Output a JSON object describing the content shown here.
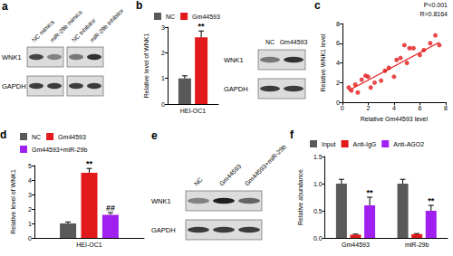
{
  "chart_data": [
    {
      "type": "bar",
      "title": "b",
      "categories": [
        "HEI-OC1"
      ],
      "series": [
        {
          "name": "NC",
          "color": "#595959",
          "values": [
            1.0
          ],
          "errors": [
            0.1
          ]
        },
        {
          "name": "Gm44593",
          "color": "#e31a1c",
          "values": [
            2.6
          ],
          "errors": [
            0.25
          ]
        }
      ],
      "ylabel": "Relative level of WNK1",
      "ylim": [
        0,
        3
      ],
      "yticks": [
        0,
        1,
        2,
        3
      ],
      "grid": false,
      "legend": "top",
      "annotations": [
        {
          "series": "Gm44593",
          "category": "HEI-OC1",
          "text": "**"
        }
      ]
    },
    {
      "type": "scatter",
      "title": "c",
      "xlabel": "Relative Gm44593 level",
      "ylabel": "Relative WNK1 level",
      "x": [
        0.5,
        0.7,
        1.0,
        1.2,
        1.5,
        1.8,
        2.0,
        2.2,
        2.5,
        3.0,
        3.3,
        3.6,
        4.0,
        4.2,
        4.5,
        4.8,
        5.0,
        5.2,
        5.5,
        6.0,
        6.3,
        6.8,
        7.2,
        7.5
      ],
      "values": [
        1.5,
        1.2,
        1.8,
        1.0,
        2.3,
        2.7,
        2.6,
        1.5,
        2.0,
        2.2,
        3.2,
        3.5,
        2.6,
        4.3,
        4.5,
        5.8,
        4.0,
        5.5,
        5.5,
        4.8,
        5.3,
        6.0,
        6.8,
        5.8
      ],
      "color": "#e31a1c",
      "marker": "circle",
      "trend_line": {
        "x": [
          0.5,
          7.5
        ],
        "values": [
          1.2,
          6.1
        ]
      },
      "xlim": [
        0,
        8
      ],
      "xticks": [
        0,
        2,
        4,
        6,
        8
      ],
      "ylim": [
        0,
        8
      ],
      "yticks": [
        0,
        2,
        4,
        6,
        8
      ],
      "grid": false,
      "annotations": [
        "P<0.001",
        "R=0.8164"
      ]
    },
    {
      "type": "bar",
      "title": "d",
      "categories": [
        "HEI-OC1"
      ],
      "series": [
        {
          "name": "NC",
          "color": "#595959",
          "values": [
            1.0
          ],
          "errors": [
            0.1
          ]
        },
        {
          "name": "Gm44593",
          "color": "#e31a1c",
          "values": [
            4.5
          ],
          "errors": [
            0.3
          ]
        },
        {
          "name": "Gm44593+miR-29b",
          "color": "#a020f0",
          "values": [
            1.6
          ],
          "errors": [
            0.15
          ]
        }
      ],
      "ylabel": "Relative level of WNK1",
      "ylim": [
        0,
        5
      ],
      "yticks": [
        0,
        1,
        2,
        3,
        4,
        5
      ],
      "grid": false,
      "legend": "top",
      "annotations": [
        {
          "series": "Gm44593",
          "category": "HEI-OC1",
          "text": "**"
        },
        {
          "series": "Gm44593+miR-29b",
          "category": "HEI-OC1",
          "text": "##"
        }
      ]
    },
    {
      "type": "bar",
      "title": "f",
      "categories": [
        "Gm44593",
        "miR-29b"
      ],
      "series": [
        {
          "name": "Input",
          "color": "#595959",
          "values": [
            1.0,
            1.0
          ],
          "errors": [
            0.08,
            0.08
          ]
        },
        {
          "name": "Anti-IgG",
          "color": "#e31a1c",
          "values": [
            0.06,
            0.07
          ],
          "errors": [
            0.01,
            0.01
          ]
        },
        {
          "name": "Anti-AGO2",
          "color": "#a020f0",
          "values": [
            0.6,
            0.5
          ],
          "errors": [
            0.15,
            0.1
          ]
        }
      ],
      "ylabel": "Relative abundance",
      "ylim": [
        0,
        1.5
      ],
      "yticks": [
        {
          "value": 0,
          "label": "0.0"
        },
        {
          "value": 0.5,
          "label": "0.5"
        },
        {
          "value": 1.0,
          "label": "1.0"
        },
        {
          "value": 1.5,
          "label": "1.5"
        }
      ],
      "grid": false,
      "legend": "top",
      "annotations": [
        {
          "series": "Anti-AGO2",
          "category": "Gm44593",
          "text": "**"
        },
        {
          "series": "Anti-AGO2",
          "category": "miR-29b",
          "text": "**"
        }
      ]
    }
  ],
  "blots": [
    {
      "panel": "a",
      "lanes": [
        "NC mimics",
        "miR-29b mimics",
        "NC inhibitor",
        "miR-29b inhibitor"
      ],
      "rows": [
        "WNK1",
        "GAPDH"
      ],
      "density": [
        [
          0.75,
          0.45,
          0.5,
          0.85
        ],
        [
          0.8,
          0.8,
          0.8,
          0.8
        ]
      ]
    },
    {
      "lanes": [
        "NC",
        "Gm44593"
      ],
      "rows": [
        "WNK1",
        "GAPDH"
      ],
      "density": [
        [
          0.5,
          0.85
        ],
        [
          0.8,
          0.8
        ]
      ]
    },
    {
      "panel": "e",
      "lanes": [
        "NC",
        "Gm44593",
        "Gm44593+miR-29b"
      ],
      "rows": [
        "WNK1",
        "GAPDH"
      ],
      "density": [
        [
          0.45,
          0.95,
          0.6
        ],
        [
          0.8,
          0.8,
          0.8
        ]
      ]
    }
  ]
}
